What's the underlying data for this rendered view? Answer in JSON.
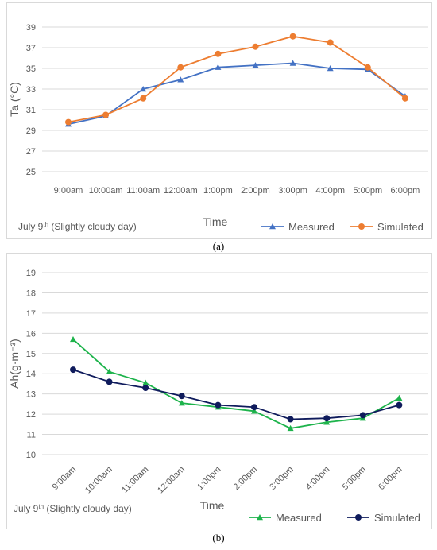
{
  "figure": {
    "caption_a": "(a)",
    "caption_b": "(b)"
  },
  "chart_data": [
    {
      "type": "line",
      "ylabel": "Ta (°C)",
      "xlabel": "Time",
      "note": "July 9",
      "note_sup": "th",
      "note_rest": " (Slightly cloudy day)",
      "x": [
        "9:00am",
        "10:00am",
        "11:00am",
        "12:00am",
        "1:00pm",
        "2:00pm",
        "3:00pm",
        "4:00pm",
        "5:00pm",
        "6:00pm"
      ],
      "ylim": [
        25,
        39
      ],
      "yticks": [
        25,
        27,
        29,
        31,
        33,
        35,
        37,
        39
      ],
      "grid": true,
      "legend": "bottom-right",
      "series": [
        {
          "name": "Measured",
          "color": "#4472C4",
          "marker": "triangle",
          "values": [
            29.6,
            30.4,
            33.0,
            33.9,
            35.1,
            35.3,
            35.5,
            35.0,
            34.9,
            32.3
          ]
        },
        {
          "name": "Simulated",
          "color": "#ED7D31",
          "marker": "circle",
          "values": [
            29.8,
            30.5,
            32.1,
            35.1,
            36.4,
            37.1,
            38.1,
            37.5,
            35.1,
            32.1
          ]
        }
      ]
    },
    {
      "type": "line",
      "ylabel": "Ah(g·m⁻³)",
      "xlabel": "Time",
      "note": "July 9",
      "note_sup": "th",
      "note_rest": " (Slightly cloudy day)",
      "x": [
        "9:00am",
        "10:00am",
        "11:00am",
        "12:00am",
        "1:00pm",
        "2:00pm",
        "3:00pm",
        "4:00pm",
        "5:00pm",
        "6:00pm"
      ],
      "ylim": [
        10,
        19
      ],
      "yticks": [
        10,
        11,
        12,
        13,
        14,
        15,
        16,
        17,
        18,
        19
      ],
      "grid": true,
      "legend": "bottom-right",
      "series": [
        {
          "name": "Measured",
          "color": "#1DB34B",
          "marker": "triangle",
          "values": [
            15.7,
            14.1,
            13.55,
            12.55,
            12.35,
            12.15,
            11.3,
            11.6,
            11.8,
            12.8
          ]
        },
        {
          "name": "Simulated",
          "color": "#0F1B5C",
          "marker": "circle",
          "values": [
            14.2,
            13.6,
            13.3,
            12.9,
            12.45,
            12.35,
            11.75,
            11.8,
            11.95,
            12.45
          ]
        }
      ]
    }
  ]
}
